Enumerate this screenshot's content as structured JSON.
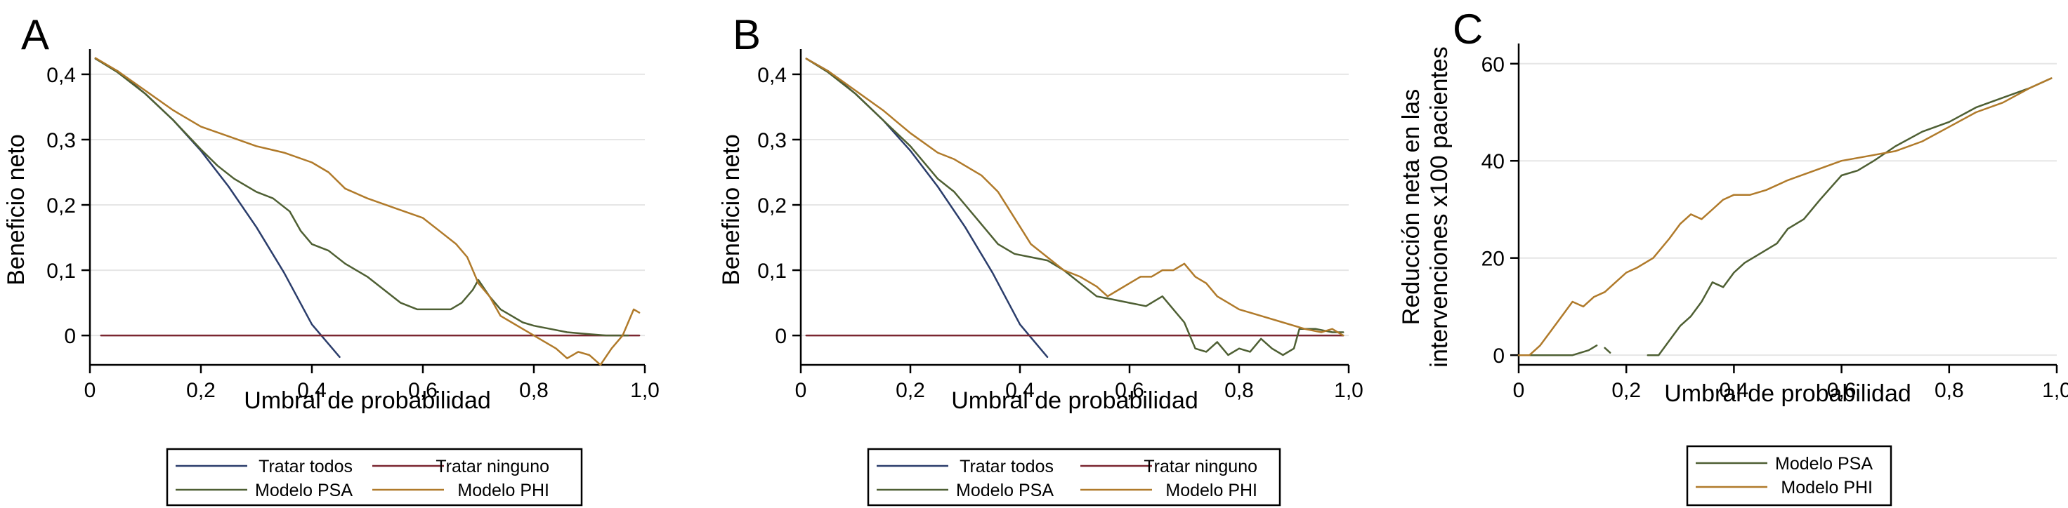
{
  "colors": {
    "tratar_todos": "#2b3d6b",
    "tratar_ninguno": "#7a2630",
    "modelo_psa": "#4e5f33",
    "modelo_phi": "#b07a2a",
    "grid": "#e6e6e6"
  },
  "chart_data": [
    {
      "panel": "A",
      "type": "line",
      "xlabel": "Umbral de probabilidad",
      "ylabel": "Beneficio neto",
      "xlim": [
        0,
        1
      ],
      "ylim": [
        -0.045,
        0.43
      ],
      "xticks": [
        0,
        0.2,
        0.4,
        0.6,
        0.8,
        1.0
      ],
      "xtick_labels": [
        "0",
        "0,2",
        "0,4",
        "0,6",
        "0,8",
        "1,0"
      ],
      "yticks": [
        0,
        0.1,
        0.2,
        0.3,
        0.4
      ],
      "ytick_labels": [
        "0",
        "0,1",
        "0,2",
        "0,3",
        "0,4"
      ],
      "grid": true,
      "legend_position": "bottom",
      "legend_columns": 2,
      "series": [
        {
          "name": "Tratar todos",
          "color_key": "tratar_todos",
          "points": [
            [
              0.01,
              0.424
            ],
            [
              0.05,
              0.405
            ],
            [
              0.1,
              0.37
            ],
            [
              0.15,
              0.33
            ],
            [
              0.2,
              0.283
            ],
            [
              0.25,
              0.228
            ],
            [
              0.3,
              0.166
            ],
            [
              0.35,
              0.096
            ],
            [
              0.4,
              0.017
            ],
            [
              0.45,
              -0.033
            ]
          ]
        },
        {
          "name": "Tratar ninguno",
          "color_key": "tratar_ninguno",
          "points": [
            [
              0.02,
              0.0
            ],
            [
              0.99,
              0.0
            ]
          ]
        },
        {
          "name": "Modelo PSA",
          "color_key": "modelo_psa",
          "points": [
            [
              0.01,
              0.424
            ],
            [
              0.05,
              0.403
            ],
            [
              0.1,
              0.37
            ],
            [
              0.15,
              0.33
            ],
            [
              0.2,
              0.285
            ],
            [
              0.23,
              0.26
            ],
            [
              0.26,
              0.24
            ],
            [
              0.3,
              0.22
            ],
            [
              0.33,
              0.21
            ],
            [
              0.36,
              0.19
            ],
            [
              0.38,
              0.16
            ],
            [
              0.4,
              0.14
            ],
            [
              0.43,
              0.13
            ],
            [
              0.46,
              0.11
            ],
            [
              0.5,
              0.09
            ],
            [
              0.53,
              0.07
            ],
            [
              0.56,
              0.05
            ],
            [
              0.59,
              0.04
            ],
            [
              0.62,
              0.04
            ],
            [
              0.65,
              0.04
            ],
            [
              0.67,
              0.05
            ],
            [
              0.69,
              0.07
            ],
            [
              0.7,
              0.085
            ],
            [
              0.72,
              0.06
            ],
            [
              0.74,
              0.04
            ],
            [
              0.76,
              0.03
            ],
            [
              0.78,
              0.02
            ],
            [
              0.8,
              0.015
            ],
            [
              0.83,
              0.01
            ],
            [
              0.86,
              0.005
            ],
            [
              0.9,
              0.002
            ],
            [
              0.93,
              0.0
            ],
            [
              0.96,
              0.0
            ],
            [
              0.97,
              0.0
            ]
          ]
        },
        {
          "name": "Modelo PHI",
          "color_key": "modelo_phi",
          "points": [
            [
              0.01,
              0.425
            ],
            [
              0.05,
              0.405
            ],
            [
              0.1,
              0.375
            ],
            [
              0.15,
              0.345
            ],
            [
              0.2,
              0.32
            ],
            [
              0.25,
              0.305
            ],
            [
              0.3,
              0.29
            ],
            [
              0.35,
              0.28
            ],
            [
              0.4,
              0.265
            ],
            [
              0.43,
              0.25
            ],
            [
              0.46,
              0.225
            ],
            [
              0.5,
              0.21
            ],
            [
              0.55,
              0.195
            ],
            [
              0.6,
              0.18
            ],
            [
              0.63,
              0.16
            ],
            [
              0.66,
              0.14
            ],
            [
              0.68,
              0.12
            ],
            [
              0.7,
              0.08
            ],
            [
              0.72,
              0.06
            ],
            [
              0.74,
              0.03
            ],
            [
              0.76,
              0.02
            ],
            [
              0.78,
              0.01
            ],
            [
              0.8,
              0.0
            ],
            [
              0.82,
              -0.01
            ],
            [
              0.84,
              -0.02
            ],
            [
              0.86,
              -0.035
            ],
            [
              0.88,
              -0.025
            ],
            [
              0.9,
              -0.03
            ],
            [
              0.92,
              -0.045
            ],
            [
              0.94,
              -0.02
            ],
            [
              0.96,
              0.0
            ],
            [
              0.98,
              0.04
            ],
            [
              0.99,
              0.035
            ]
          ]
        }
      ]
    },
    {
      "panel": "B",
      "type": "line",
      "xlabel": "Umbral de probabilidad",
      "ylabel": "Beneficio neto",
      "xlim": [
        0,
        1
      ],
      "ylim": [
        -0.045,
        0.43
      ],
      "xticks": [
        0,
        0.2,
        0.4,
        0.6,
        0.8,
        1.0
      ],
      "xtick_labels": [
        "0",
        "0,2",
        "0,4",
        "0,6",
        "0,8",
        "1,0"
      ],
      "yticks": [
        0,
        0.1,
        0.2,
        0.3,
        0.4
      ],
      "ytick_labels": [
        "0",
        "0,1",
        "0,2",
        "0,3",
        "0,4"
      ],
      "grid": true,
      "legend_position": "bottom",
      "legend_columns": 2,
      "series": [
        {
          "name": "Tratar todos",
          "color_key": "tratar_todos",
          "points": [
            [
              0.01,
              0.424
            ],
            [
              0.05,
              0.405
            ],
            [
              0.1,
              0.37
            ],
            [
              0.15,
              0.33
            ],
            [
              0.2,
              0.283
            ],
            [
              0.25,
              0.228
            ],
            [
              0.3,
              0.166
            ],
            [
              0.35,
              0.096
            ],
            [
              0.4,
              0.017
            ],
            [
              0.45,
              -0.033
            ]
          ]
        },
        {
          "name": "Tratar ninguno",
          "color_key": "tratar_ninguno",
          "points": [
            [
              0.01,
              0.0
            ],
            [
              0.99,
              0.0
            ]
          ]
        },
        {
          "name": "Modelo PSA",
          "color_key": "modelo_psa",
          "points": [
            [
              0.01,
              0.424
            ],
            [
              0.05,
              0.403
            ],
            [
              0.1,
              0.37
            ],
            [
              0.15,
              0.33
            ],
            [
              0.2,
              0.29
            ],
            [
              0.25,
              0.24
            ],
            [
              0.28,
              0.22
            ],
            [
              0.3,
              0.2
            ],
            [
              0.33,
              0.17
            ],
            [
              0.36,
              0.14
            ],
            [
              0.39,
              0.125
            ],
            [
              0.42,
              0.12
            ],
            [
              0.45,
              0.115
            ],
            [
              0.48,
              0.1
            ],
            [
              0.51,
              0.08
            ],
            [
              0.54,
              0.06
            ],
            [
              0.57,
              0.055
            ],
            [
              0.6,
              0.05
            ],
            [
              0.63,
              0.045
            ],
            [
              0.66,
              0.06
            ],
            [
              0.68,
              0.04
            ],
            [
              0.7,
              0.02
            ],
            [
              0.72,
              -0.02
            ],
            [
              0.74,
              -0.025
            ],
            [
              0.76,
              -0.01
            ],
            [
              0.78,
              -0.03
            ],
            [
              0.8,
              -0.02
            ],
            [
              0.82,
              -0.025
            ],
            [
              0.84,
              -0.005
            ],
            [
              0.86,
              -0.02
            ],
            [
              0.88,
              -0.03
            ],
            [
              0.9,
              -0.02
            ],
            [
              0.91,
              0.01
            ],
            [
              0.94,
              0.01
            ],
            [
              0.97,
              0.005
            ],
            [
              0.99,
              0.005
            ]
          ]
        },
        {
          "name": "Modelo PHI",
          "color_key": "modelo_phi",
          "points": [
            [
              0.01,
              0.424
            ],
            [
              0.05,
              0.405
            ],
            [
              0.1,
              0.375
            ],
            [
              0.15,
              0.345
            ],
            [
              0.2,
              0.31
            ],
            [
              0.25,
              0.28
            ],
            [
              0.28,
              0.27
            ],
            [
              0.3,
              0.26
            ],
            [
              0.33,
              0.245
            ],
            [
              0.36,
              0.22
            ],
            [
              0.39,
              0.18
            ],
            [
              0.42,
              0.14
            ],
            [
              0.45,
              0.12
            ],
            [
              0.48,
              0.1
            ],
            [
              0.51,
              0.09
            ],
            [
              0.54,
              0.075
            ],
            [
              0.56,
              0.06
            ],
            [
              0.58,
              0.07
            ],
            [
              0.6,
              0.08
            ],
            [
              0.62,
              0.09
            ],
            [
              0.64,
              0.09
            ],
            [
              0.66,
              0.1
            ],
            [
              0.68,
              0.1
            ],
            [
              0.7,
              0.11
            ],
            [
              0.72,
              0.09
            ],
            [
              0.74,
              0.08
            ],
            [
              0.76,
              0.06
            ],
            [
              0.78,
              0.05
            ],
            [
              0.8,
              0.04
            ],
            [
              0.84,
              0.03
            ],
            [
              0.88,
              0.02
            ],
            [
              0.92,
              0.01
            ],
            [
              0.95,
              0.005
            ],
            [
              0.97,
              0.01
            ],
            [
              0.99,
              0.0
            ]
          ]
        }
      ]
    },
    {
      "panel": "C",
      "type": "line",
      "xlabel": "Umbral de probabilidad",
      "ylabel": [
        "Reducción neta en las",
        "intervenciones x100 pacientes"
      ],
      "xlim": [
        0,
        1
      ],
      "ylim": [
        -2,
        63
      ],
      "xticks": [
        0,
        0.2,
        0.4,
        0.6,
        0.8,
        1.0
      ],
      "xtick_labels": [
        "0",
        "0,2",
        "0,4",
        "0,6",
        "0,8",
        "1,0"
      ],
      "yticks": [
        0,
        20,
        40,
        60
      ],
      "ytick_labels": [
        "0",
        "20",
        "40",
        "60"
      ],
      "grid": true,
      "legend_position": "bottom",
      "legend_columns": 1,
      "series": [
        {
          "name": "Modelo PSA",
          "color_key": "modelo_psa",
          "segments": [
            [
              [
                0.0,
                0.0
              ],
              [
                0.05,
                0.0
              ],
              [
                0.1,
                0.0
              ],
              [
                0.13,
                1.0
              ],
              [
                0.145,
                2.0
              ]
            ],
            [
              [
                0.16,
                1.5
              ],
              [
                0.17,
                0.5
              ]
            ],
            [
              [
                0.24,
                0.0
              ],
              [
                0.26,
                0.0
              ],
              [
                0.28,
                3.0
              ],
              [
                0.3,
                6.0
              ],
              [
                0.32,
                8.0
              ],
              [
                0.34,
                11.0
              ],
              [
                0.36,
                15.0
              ],
              [
                0.38,
                14.0
              ],
              [
                0.4,
                17.0
              ],
              [
                0.42,
                19.0
              ],
              [
                0.45,
                21.0
              ],
              [
                0.48,
                23.0
              ],
              [
                0.5,
                26.0
              ],
              [
                0.53,
                28.0
              ],
              [
                0.56,
                32.0
              ],
              [
                0.6,
                37.0
              ],
              [
                0.63,
                38.0
              ],
              [
                0.66,
                40.0
              ],
              [
                0.7,
                43.0
              ],
              [
                0.75,
                46.0
              ],
              [
                0.8,
                48.0
              ],
              [
                0.85,
                51.0
              ],
              [
                0.9,
                53.0
              ],
              [
                0.95,
                55.0
              ],
              [
                0.99,
                57.0
              ]
            ]
          ]
        },
        {
          "name": "Modelo PHI",
          "color_key": "modelo_phi",
          "segments": [
            [
              [
                0.0,
                0.0
              ],
              [
                0.02,
                0.0
              ],
              [
                0.04,
                2.0
              ],
              [
                0.06,
                5.0
              ],
              [
                0.08,
                8.0
              ],
              [
                0.1,
                11.0
              ],
              [
                0.12,
                10.0
              ],
              [
                0.14,
                12.0
              ],
              [
                0.16,
                13.0
              ],
              [
                0.18,
                15.0
              ],
              [
                0.2,
                17.0
              ],
              [
                0.22,
                18.0
              ],
              [
                0.25,
                20.0
              ],
              [
                0.28,
                24.0
              ],
              [
                0.3,
                27.0
              ],
              [
                0.32,
                29.0
              ],
              [
                0.34,
                28.0
              ],
              [
                0.36,
                30.0
              ],
              [
                0.38,
                32.0
              ],
              [
                0.4,
                33.0
              ],
              [
                0.43,
                33.0
              ],
              [
                0.46,
                34.0
              ],
              [
                0.5,
                36.0
              ],
              [
                0.55,
                38.0
              ],
              [
                0.6,
                40.0
              ],
              [
                0.65,
                41.0
              ],
              [
                0.7,
                42.0
              ],
              [
                0.75,
                44.0
              ],
              [
                0.8,
                47.0
              ],
              [
                0.85,
                50.0
              ],
              [
                0.9,
                52.0
              ],
              [
                0.95,
                55.0
              ],
              [
                0.99,
                57.0
              ]
            ]
          ]
        }
      ]
    }
  ]
}
